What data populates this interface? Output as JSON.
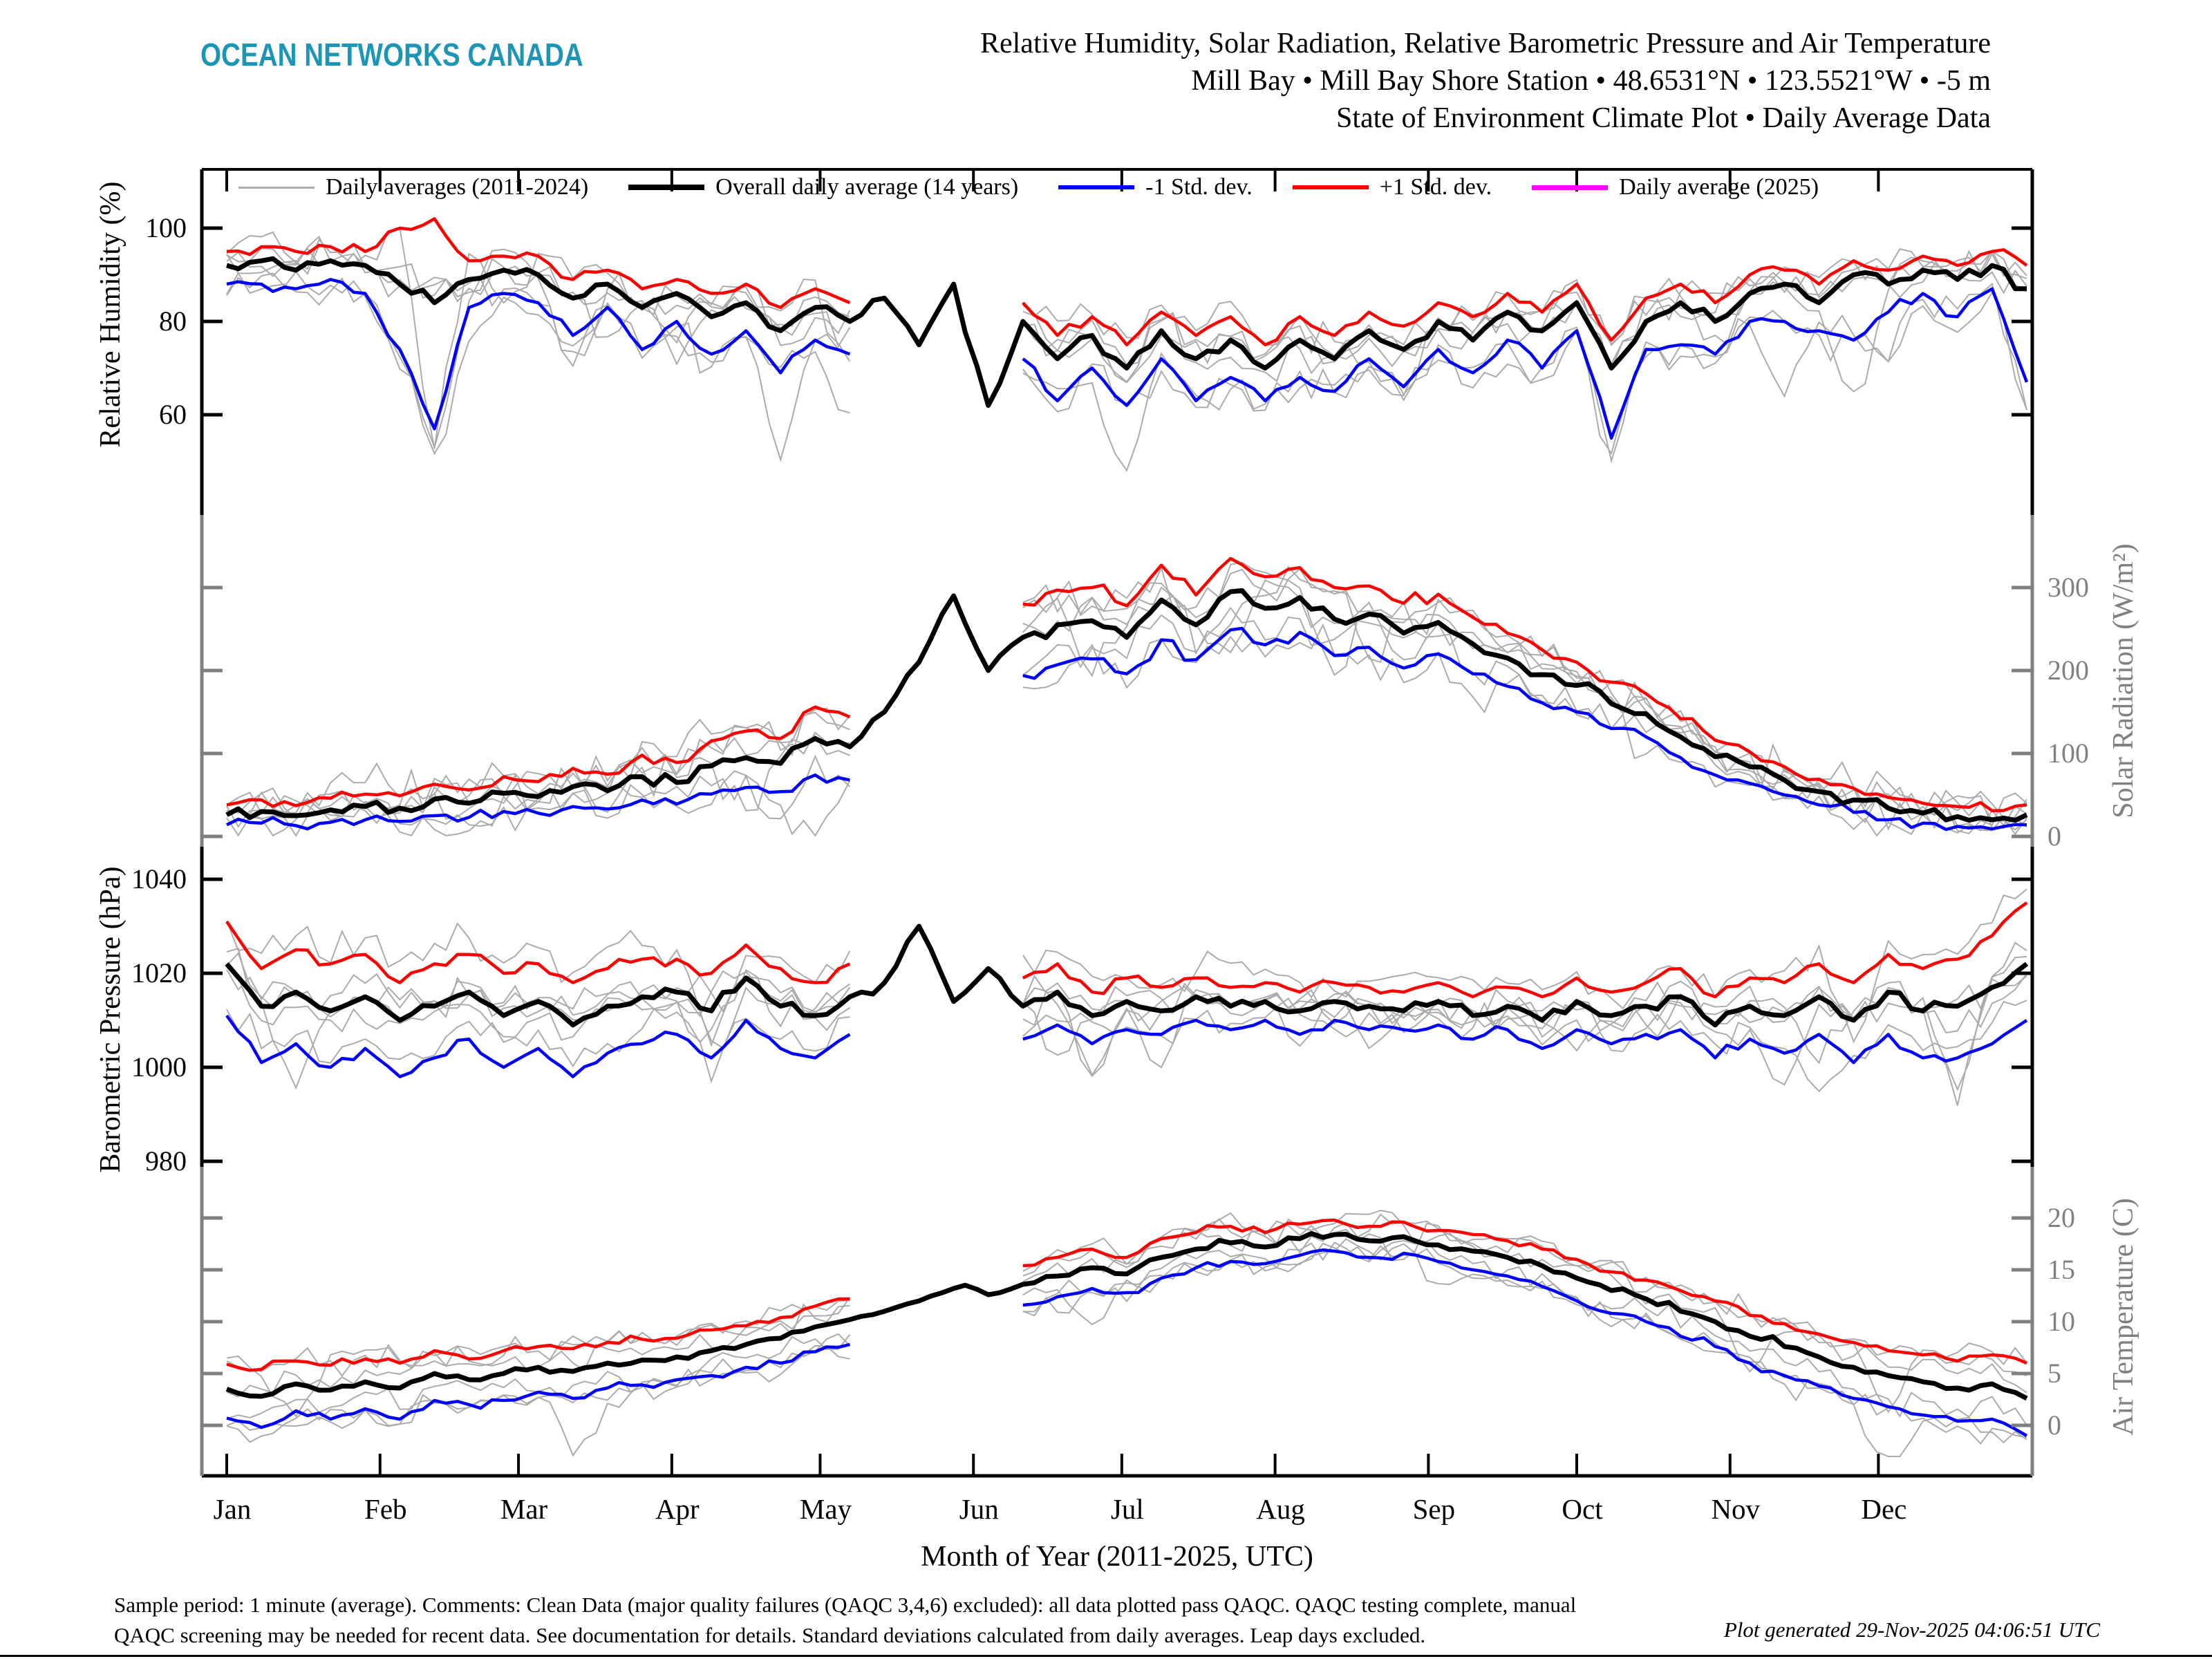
{
  "header": {
    "logo": "OCEAN NETWORKS CANADA",
    "logo_color": "#1D95B7",
    "title": "Relative Humidity, Solar Radiation, Relative Barometric Pressure and Air Temperature",
    "subtitle_station": "Mill Bay • Mill Bay Shore Station • 48.6531°N • 123.5521°W • -5 m",
    "subtitle_type": "State of Environment Climate Plot • Daily Average Data"
  },
  "legend": [
    {
      "label": "Daily averages (2011-2024)",
      "color": "#ABABAB",
      "weight": 3
    },
    {
      "label": "Overall daily average (14 years)",
      "color": "#000000",
      "weight": 8
    },
    {
      "label": "-1 Std.  dev.",
      "color": "#0000FF",
      "weight": 6
    },
    {
      "label": "+1 Std.  dev.",
      "color": "#FF0000",
      "weight": 6
    },
    {
      "label": "Daily average (2025)",
      "color": "#FF00FF",
      "weight": 7
    }
  ],
  "footer": {
    "line1": "Sample period: 1 minute (average). Comments: Clean Data (major quality failures (QAQC 3,4,6) excluded): all data plotted pass QAQC. QAQC testing complete, manual",
    "line2": "QAQC screening may be needed for recent data. See documentation for details. Standard deviations calculated from daily averages. Leap days excluded.",
    "generated": "Plot generated 29-Nov-2025 04:06:51 UTC"
  },
  "chart_data": {
    "type": "line",
    "title": "Relative Humidity, Solar Radiation, Relative Barometric Pressure and Air Temperature",
    "xlabel": "Month of Year (2011-2025, UTC)",
    "x_unit": "day_of_year",
    "x_start_day": 1,
    "x_step_days": 7,
    "months": [
      {
        "label": "Jan",
        "start_day": 1
      },
      {
        "label": "Feb",
        "start_day": 32
      },
      {
        "label": "Mar",
        "start_day": 60
      },
      {
        "label": "Apr",
        "start_day": 91
      },
      {
        "label": "May",
        "start_day": 121
      },
      {
        "label": "Jun",
        "start_day": 152
      },
      {
        "label": "Jul",
        "start_day": 182
      },
      {
        "label": "Aug",
        "start_day": 213
      },
      {
        "label": "Sep",
        "start_day": 244
      },
      {
        "label": "Oct",
        "start_day": 274
      },
      {
        "label": "Nov",
        "start_day": 305
      },
      {
        "label": "Dec",
        "start_day": 335
      }
    ],
    "colors": {
      "mean": "#000000",
      "plus1std": "#FF0000",
      "minus1std": "#0000FF",
      "years_2011_2024": "#ABABAB",
      "daily_2025": "#FF00FF"
    },
    "notes": "Std.dev. and per-year lines are absent (gap) for weeks 19-22 (mid-May to mid-June); 2025 daily-average line not visible on plot.",
    "panels": [
      {
        "id": "humidity",
        "ylabel": "Relative Humidity (%)",
        "label_side": "left",
        "axis_color": "#000000",
        "ticks": [
          100,
          80,
          60
        ],
        "ylim": [
          46,
          112
        ],
        "mean": [
          92,
          93,
          91,
          93,
          92,
          88,
          84,
          89,
          91,
          90,
          85,
          88,
          83,
          86,
          81,
          84,
          78,
          83,
          80,
          85,
          75,
          88,
          62,
          80,
          72,
          77,
          70,
          78,
          72,
          76,
          70,
          76,
          72,
          78,
          74,
          80,
          76,
          82,
          78,
          84,
          70,
          80,
          84,
          80,
          86,
          88,
          84,
          90,
          88,
          91,
          89,
          92,
          87
        ],
        "std_up": [
          3,
          3,
          4,
          3,
          3,
          12,
          18,
          4,
          3,
          4,
          4,
          3,
          4,
          3,
          5,
          4,
          5,
          4,
          4,
          null,
          null,
          null,
          null,
          4,
          5,
          4,
          5,
          4,
          5,
          5,
          5,
          5,
          5,
          4,
          5,
          4,
          5,
          4,
          4,
          4,
          6,
          5,
          4,
          4,
          4,
          3,
          4,
          3,
          3,
          3,
          3,
          3,
          5
        ],
        "std_down": [
          4,
          5,
          4,
          4,
          6,
          14,
          27,
          6,
          5,
          6,
          8,
          5,
          9,
          6,
          8,
          6,
          9,
          7,
          7,
          null,
          null,
          null,
          null,
          8,
          9,
          7,
          8,
          6,
          9,
          8,
          7,
          8,
          7,
          6,
          8,
          6,
          7,
          6,
          8,
          6,
          15,
          6,
          9,
          7,
          6,
          8,
          6,
          14,
          6,
          5,
          8,
          5,
          20
        ]
      },
      {
        "id": "solar",
        "ylabel": "Solar Radiation (W/m²)",
        "label_side": "right",
        "axis_color": "#808080",
        "ticks": [
          300,
          200,
          100,
          0
        ],
        "ylim": [
          0,
          340
        ],
        "mean": [
          26,
          30,
          25,
          32,
          36,
          34,
          45,
          40,
          52,
          48,
          60,
          55,
          72,
          65,
          85,
          95,
          88,
          118,
          108,
          150,
          210,
          290,
          200,
          240,
          255,
          260,
          240,
          285,
          255,
          295,
          275,
          288,
          262,
          268,
          245,
          258,
          232,
          215,
          195,
          182,
          160,
          148,
          120,
          96,
          84,
          68,
          54,
          44,
          34,
          28,
          24,
          20,
          26
        ],
        "std_up": [
          12,
          14,
          12,
          14,
          15,
          15,
          18,
          16,
          20,
          18,
          22,
          20,
          26,
          24,
          30,
          32,
          30,
          38,
          36,
          null,
          null,
          null,
          null,
          40,
          42,
          40,
          38,
          42,
          36,
          40,
          38,
          36,
          38,
          34,
          36,
          34,
          32,
          30,
          30,
          28,
          26,
          24,
          22,
          20,
          18,
          16,
          15,
          14,
          13,
          12,
          12,
          11,
          12
        ],
        "std_down": [
          12,
          14,
          12,
          15,
          16,
          16,
          20,
          17,
          22,
          20,
          24,
          22,
          28,
          26,
          34,
          36,
          34,
          44,
          40,
          null,
          null,
          null,
          null,
          46,
          48,
          46,
          44,
          48,
          42,
          46,
          44,
          42,
          44,
          40,
          42,
          38,
          36,
          34,
          34,
          32,
          30,
          28,
          25,
          22,
          20,
          18,
          16,
          15,
          14,
          12,
          12,
          11,
          12
        ]
      },
      {
        "id": "pressure",
        "ylabel": "Barometric Pressure (hPa)",
        "label_side": "left",
        "axis_color": "#000000",
        "ticks": [
          1040,
          1020,
          1000,
          980
        ],
        "ylim": [
          978,
          1044
        ],
        "mean": [
          1022,
          1013,
          1016,
          1012,
          1015,
          1010,
          1013,
          1016,
          1011,
          1014,
          1009,
          1013,
          1015,
          1016,
          1012,
          1019,
          1013,
          1011,
          1015,
          1018,
          1030,
          1014,
          1021,
          1013,
          1016,
          1011,
          1014,
          1012,
          1015,
          1013,
          1014,
          1012,
          1014,
          1013,
          1012,
          1014,
          1011,
          1013,
          1010,
          1014,
          1011,
          1013,
          1015,
          1009,
          1013,
          1011,
          1015,
          1010,
          1016,
          1012,
          1013,
          1017,
          1022
        ],
        "std_up": [
          9,
          8,
          9,
          10,
          9,
          8,
          9,
          8,
          9,
          8,
          9,
          8,
          8,
          7,
          8,
          7,
          8,
          7,
          7,
          null,
          null,
          null,
          null,
          6,
          6,
          5,
          5,
          5,
          4,
          4,
          4,
          4,
          4,
          4,
          4,
          4,
          4,
          4,
          5,
          5,
          5,
          5,
          6,
          6,
          6,
          7,
          7,
          8,
          8,
          9,
          10,
          11,
          13
        ],
        "std_down": [
          11,
          12,
          11,
          12,
          11,
          12,
          11,
          10,
          11,
          10,
          11,
          10,
          10,
          9,
          10,
          9,
          9,
          9,
          8,
          null,
          null,
          null,
          null,
          7,
          7,
          6,
          6,
          5,
          5,
          5,
          4,
          5,
          4,
          5,
          4,
          5,
          5,
          5,
          6,
          6,
          6,
          6,
          7,
          7,
          7,
          8,
          8,
          9,
          9,
          10,
          11,
          12,
          12
        ]
      },
      {
        "id": "temperature",
        "ylabel": "Air Temperature (C)",
        "label_side": "right",
        "axis_color": "#808080",
        "ticks": [
          20,
          15,
          10,
          5,
          0
        ],
        "ylim": [
          -3,
          24
        ],
        "mean": [
          3.5,
          2.8,
          4.0,
          3.4,
          4.2,
          3.6,
          5.0,
          4.4,
          5.0,
          5.6,
          5.2,
          6.0,
          6.3,
          6.6,
          7.2,
          7.8,
          8.4,
          9.5,
          10.2,
          11.0,
          12.0,
          13.2,
          12.6,
          13.6,
          14.4,
          15.2,
          14.6,
          16.2,
          17.0,
          17.6,
          17.2,
          18.0,
          18.4,
          17.8,
          18.2,
          17.4,
          16.8,
          16.2,
          15.4,
          14.2,
          13.0,
          12.2,
          11.0,
          10.0,
          8.6,
          7.6,
          6.6,
          5.6,
          4.8,
          4.2,
          3.6,
          4.0,
          2.6
        ],
        "std_up": [
          2.4,
          2.6,
          2.2,
          2.4,
          2.2,
          2.4,
          2.2,
          2.0,
          2.2,
          2.0,
          2.2,
          2.0,
          2.0,
          1.8,
          2.0,
          1.8,
          2.0,
          2.0,
          2.0,
          null,
          null,
          null,
          null,
          1.8,
          1.8,
          1.8,
          1.6,
          1.8,
          1.6,
          1.6,
          1.4,
          1.4,
          1.4,
          1.4,
          1.4,
          1.4,
          1.6,
          1.6,
          1.6,
          1.8,
          1.8,
          1.8,
          2.0,
          2.0,
          2.0,
          2.2,
          2.2,
          2.4,
          2.4,
          2.6,
          2.6,
          2.8,
          3.4
        ],
        "std_down": [
          2.8,
          3.0,
          2.6,
          2.8,
          2.6,
          3.0,
          2.6,
          2.4,
          2.6,
          2.4,
          2.6,
          2.4,
          2.4,
          2.2,
          2.4,
          2.2,
          2.4,
          2.4,
          2.4,
          null,
          null,
          null,
          null,
          2.0,
          2.0,
          2.0,
          1.8,
          2.0,
          1.8,
          1.8,
          1.6,
          1.6,
          1.6,
          1.6,
          1.6,
          1.6,
          1.8,
          1.8,
          2.0,
          2.2,
          2.2,
          2.2,
          2.4,
          2.4,
          2.6,
          2.8,
          2.8,
          3.0,
          3.0,
          3.2,
          3.2,
          3.4,
          3.6
        ]
      }
    ],
    "std_gap_weeks": [
      19,
      22
    ],
    "render": {
      "seed": 11,
      "n_gray_years": 6,
      "spike_prob": 0.05,
      "anchors": {
        "humidity": [
          100,
          330,
          60,
          600
        ],
        "solar": [
          300,
          850,
          0,
          1210
        ],
        "pressure": [
          1040,
          1272,
          980,
          1680
        ],
        "temperature": [
          20,
          1762,
          0,
          2062
        ]
      },
      "bands": {
        "humidity": [
          245,
          745
        ],
        "solar": [
          745,
          1225
        ],
        "pressure": [
          1225,
          1688
        ],
        "temperature": [
          1688,
          2135
        ]
      },
      "jitter": {
        "humidity": 2.6,
        "solar": 16,
        "pressure": 2.4,
        "temperature": 0.8
      },
      "gray_clamp": {
        "humidity": [
          46,
          100
        ],
        "solar": [
          1,
          335
        ],
        "pressure": [
          986,
          1042
        ],
        "temperature": [
          -3,
          23
        ]
      }
    }
  }
}
